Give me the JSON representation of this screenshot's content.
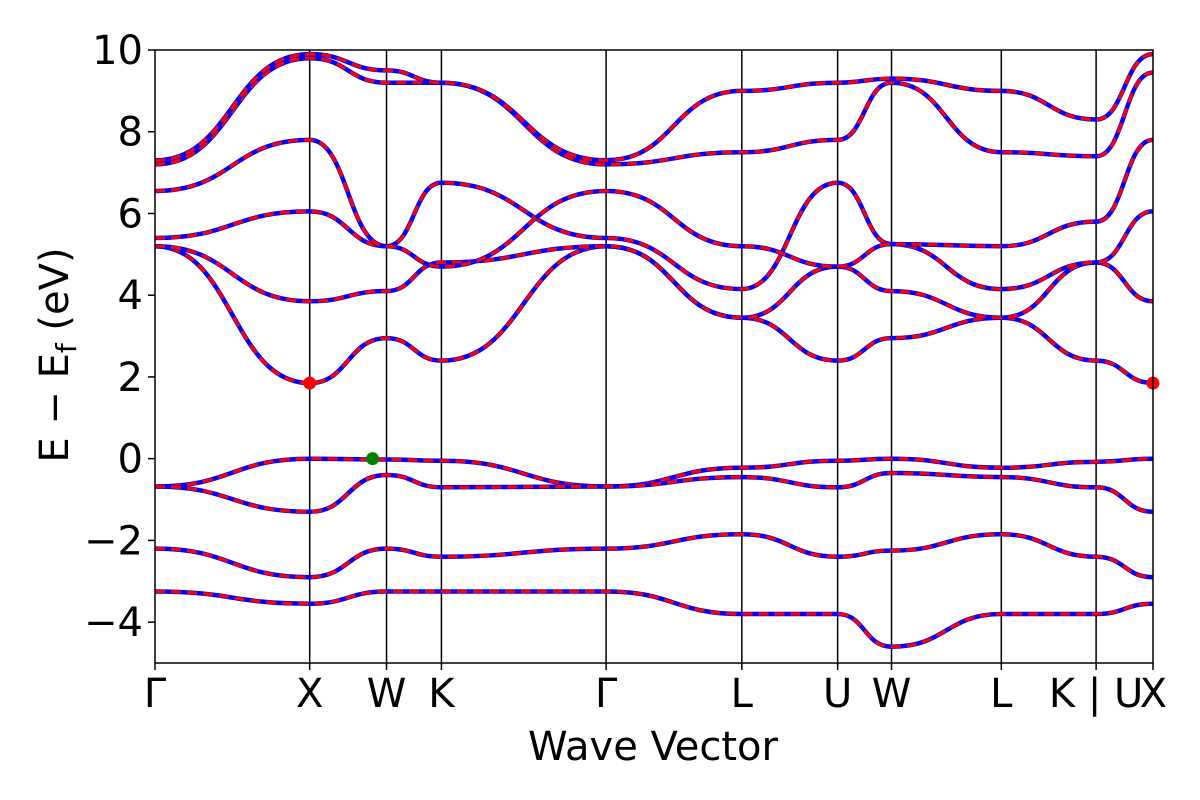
{
  "chart_data": {
    "type": "line",
    "title": "",
    "xlabel": "Wave Vector",
    "ylabel": "E − E_f (eV)",
    "ylabel_main": "E − E",
    "ylabel_sub": "f",
    "ylabel_tail": " (eV)",
    "ylim": [
      -5,
      10
    ],
    "yticks": [
      -4,
      -2,
      0,
      2,
      4,
      6,
      8,
      10
    ],
    "ytick_labels": [
      "−4",
      "−2",
      "0",
      "2",
      "4",
      "6",
      "8",
      "10"
    ],
    "xlim": [
      0,
      1
    ],
    "kpoint_positions": [
      0.0,
      0.155,
      0.232,
      0.287,
      0.452,
      0.588,
      0.684,
      0.738,
      0.848,
      0.943,
      1.0
    ],
    "kpoint_labels": [
      "Γ",
      "X",
      "W",
      "K",
      "Γ",
      "L",
      "U",
      "W",
      "L",
      "K | U",
      "X"
    ],
    "line_colors": {
      "dft": "#0000ff",
      "overlay": "#ff0000"
    },
    "markers": [
      {
        "name": "CBM",
        "x": 0.155,
        "y": 1.85,
        "color": "#ff0000"
      },
      {
        "name": "CBM",
        "x": 1.0,
        "y": 1.85,
        "color": "#ff0000"
      },
      {
        "name": "VBM",
        "x": 0.218,
        "y": 0.0,
        "color": "#008000"
      }
    ],
    "series": [
      {
        "values": [
          -0.68,
          0.0,
          -0.02,
          -0.05,
          -0.68,
          -0.22,
          -0.05,
          0.0,
          -0.22,
          -0.08,
          0.0
        ]
      },
      {
        "values": [
          -0.68,
          -1.3,
          -0.4,
          -0.7,
          -0.68,
          -0.45,
          -0.7,
          -0.35,
          -0.45,
          -0.7,
          -1.3
        ]
      },
      {
        "values": [
          -2.2,
          -2.9,
          -2.2,
          -2.4,
          -2.2,
          -1.85,
          -2.4,
          -2.25,
          -1.85,
          -2.4,
          -2.9
        ]
      },
      {
        "values": [
          -3.25,
          -3.55,
          -3.25,
          -3.25,
          -3.25,
          -3.8,
          -3.8,
          -4.6,
          -3.8,
          -3.8,
          -3.55
        ]
      },
      {
        "values": [
          5.2,
          1.85,
          2.95,
          2.4,
          5.2,
          3.45,
          2.4,
          2.95,
          3.45,
          2.4,
          1.85
        ]
      },
      {
        "values": [
          5.2,
          3.85,
          4.1,
          4.8,
          5.2,
          3.45,
          4.7,
          4.1,
          3.45,
          4.8,
          3.85
        ]
      },
      {
        "values": [
          5.4,
          6.05,
          5.2,
          6.75,
          5.4,
          4.15,
          6.75,
          5.25,
          4.15,
          4.8,
          6.05
        ]
      },
      {
        "values": [
          6.55,
          7.8,
          5.2,
          4.7,
          6.55,
          5.2,
          4.7,
          5.25,
          5.2,
          5.8,
          7.8
        ]
      },
      {
        "values": [
          7.2,
          9.8,
          9.2,
          9.2,
          7.2,
          7.5,
          7.8,
          9.2,
          7.5,
          7.4,
          9.45
        ]
      },
      {
        "values": [
          7.3,
          9.9,
          9.5,
          9.2,
          7.3,
          9.0,
          9.2,
          9.3,
          9.0,
          8.3,
          9.9
        ]
      }
    ]
  }
}
